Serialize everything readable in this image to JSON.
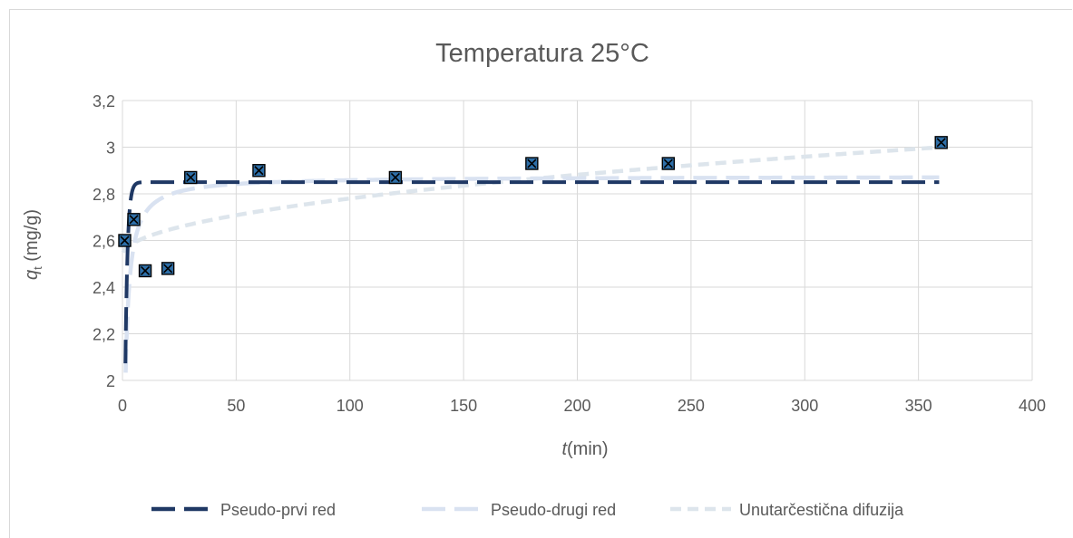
{
  "chart_data": {
    "type": "scatter",
    "title": "Temperatura 25°C",
    "xlabel": {
      "italic": "t",
      "rest": "(min)"
    },
    "ylabel": {
      "italic": "q",
      "sub": "t",
      "rest": " (mg/g)"
    },
    "xlim": [
      0,
      400
    ],
    "ylim": [
      2,
      3.2
    ],
    "xticks": [
      "0",
      "50",
      "100",
      "150",
      "200",
      "250",
      "300",
      "350",
      "400"
    ],
    "yticks": [
      "2",
      "2,2",
      "2,4",
      "2,6",
      "2,8",
      "3",
      "3,2"
    ],
    "grid": true,
    "legend_position": "bottom",
    "points": {
      "x": [
        1,
        5,
        10,
        20,
        30,
        60,
        120,
        180,
        240,
        360
      ],
      "y": [
        2.6,
        2.69,
        2.47,
        2.48,
        2.87,
        2.9,
        2.87,
        2.93,
        2.93,
        3.02
      ]
    },
    "series": [
      {
        "name": "Pseudo-prvi red",
        "color": "#1f3864",
        "dash": "long-dash",
        "model": "pfo",
        "qe": 2.85,
        "k1": 1.0
      },
      {
        "name": "Pseudo-drugi red",
        "color": "#d9e2f1",
        "dash": "long-dash",
        "model": "pso",
        "qe": 2.875,
        "k2": 0.6
      },
      {
        "name": "Unutarčestična difuzija",
        "color": "#dde5ec",
        "dash": "short-dash",
        "model": "ipd",
        "kid": 0.0245,
        "c": 2.535
      }
    ]
  }
}
